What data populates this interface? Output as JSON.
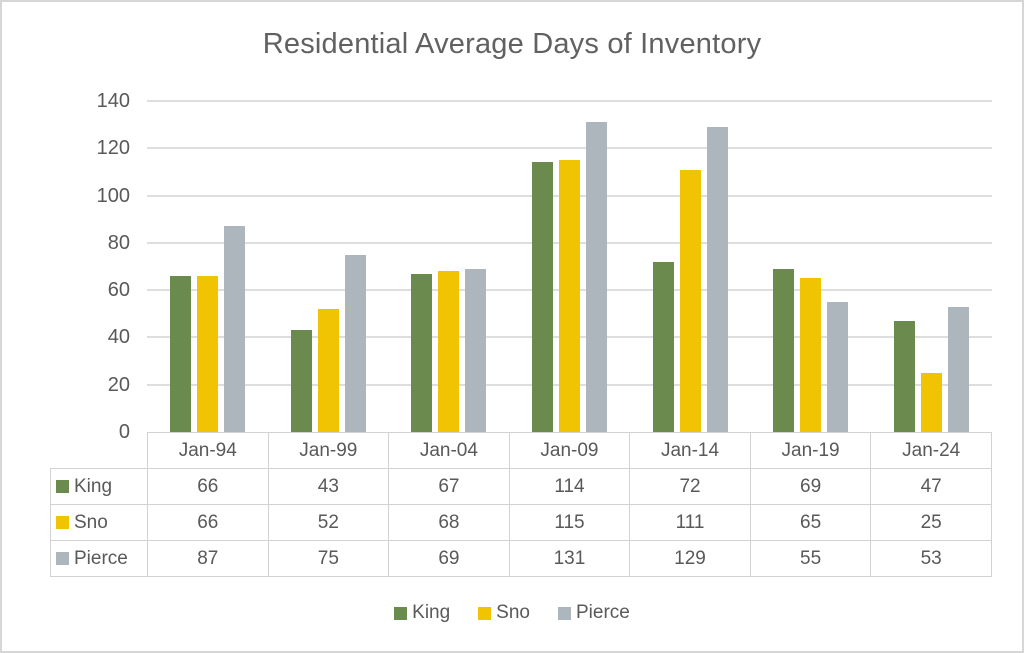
{
  "chart_data": {
    "type": "bar",
    "title": "Residential Average Days of Inventory",
    "categories": [
      "Jan-94",
      "Jan-99",
      "Jan-04",
      "Jan-09",
      "Jan-14",
      "Jan-19",
      "Jan-24"
    ],
    "series": [
      {
        "name": "King",
        "color": "#6a8a4e",
        "values": [
          66,
          43,
          67,
          114,
          72,
          69,
          47
        ]
      },
      {
        "name": "Sno",
        "color": "#f0c402",
        "values": [
          66,
          52,
          68,
          115,
          111,
          65,
          25
        ]
      },
      {
        "name": "Pierce",
        "color": "#aeb6bd",
        "values": [
          87,
          75,
          69,
          131,
          129,
          55,
          53
        ]
      }
    ],
    "xlabel": "",
    "ylabel": "",
    "ylim": [
      0,
      140
    ],
    "yticks": [
      0,
      20,
      40,
      60,
      80,
      100,
      120,
      140
    ],
    "grid": true,
    "legend_position": "bottom",
    "data_table_shown": true
  },
  "colors": {
    "title_text": "#616161",
    "axis_text": "#595959",
    "gridline": "#dedede",
    "table_border": "#d2d2d2",
    "window_border": "#d6d6d6",
    "background": "#ffffff"
  }
}
